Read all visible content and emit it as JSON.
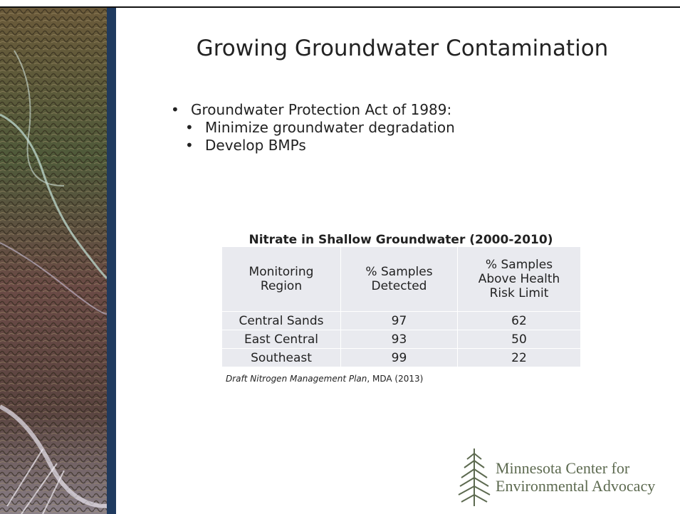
{
  "slide": {
    "title": "Growing Groundwater Contamination",
    "bullets": [
      {
        "text": "Groundwater Protection Act of 1989:",
        "sub": [
          "Minimize groundwater degradation",
          "Develop BMPs"
        ]
      }
    ],
    "table": {
      "title": "Nitrate in Shallow Groundwater (2000-2010)",
      "columns": [
        "Monitoring Region",
        "% Samples Detected",
        "% Samples Above Health Risk Limit"
      ],
      "rows": [
        [
          "Central Sands",
          "97",
          "62"
        ],
        [
          "East Central",
          "93",
          "50"
        ],
        [
          "Southeast",
          "99",
          "22"
        ]
      ]
    },
    "source": {
      "title": "Draft Nitrogen Management Plan",
      "rest": ", MDA (2013)"
    },
    "logo": {
      "line1": "Minnesota Center for",
      "line2": "Environmental Advocacy"
    }
  }
}
